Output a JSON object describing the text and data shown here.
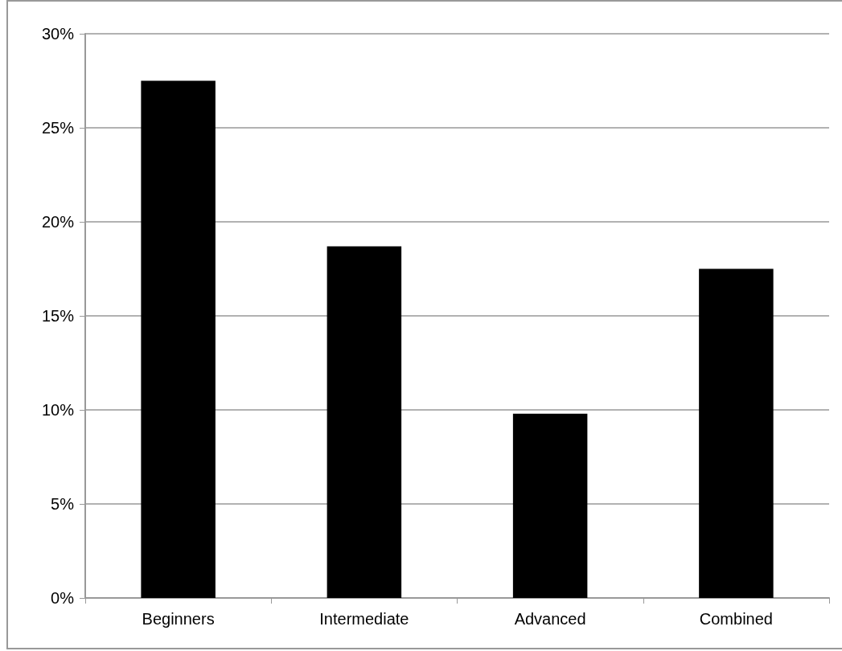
{
  "chart_data": {
    "type": "bar",
    "categories": [
      "Beginners",
      "Intermediate",
      "Advanced",
      "Combined"
    ],
    "values": [
      27.5,
      18.7,
      9.8,
      17.5
    ],
    "color": "#000000",
    "ylim": [
      0,
      30
    ],
    "yticks": [
      {
        "value": 0,
        "label": "0%"
      },
      {
        "value": 5,
        "label": "5%"
      },
      {
        "value": 10,
        "label": "10%"
      },
      {
        "value": 15,
        "label": "15%"
      },
      {
        "value": 20,
        "label": "20%"
      },
      {
        "value": 25,
        "label": "25%"
      },
      {
        "value": 30,
        "label": "30%"
      }
    ],
    "grid": "y"
  }
}
